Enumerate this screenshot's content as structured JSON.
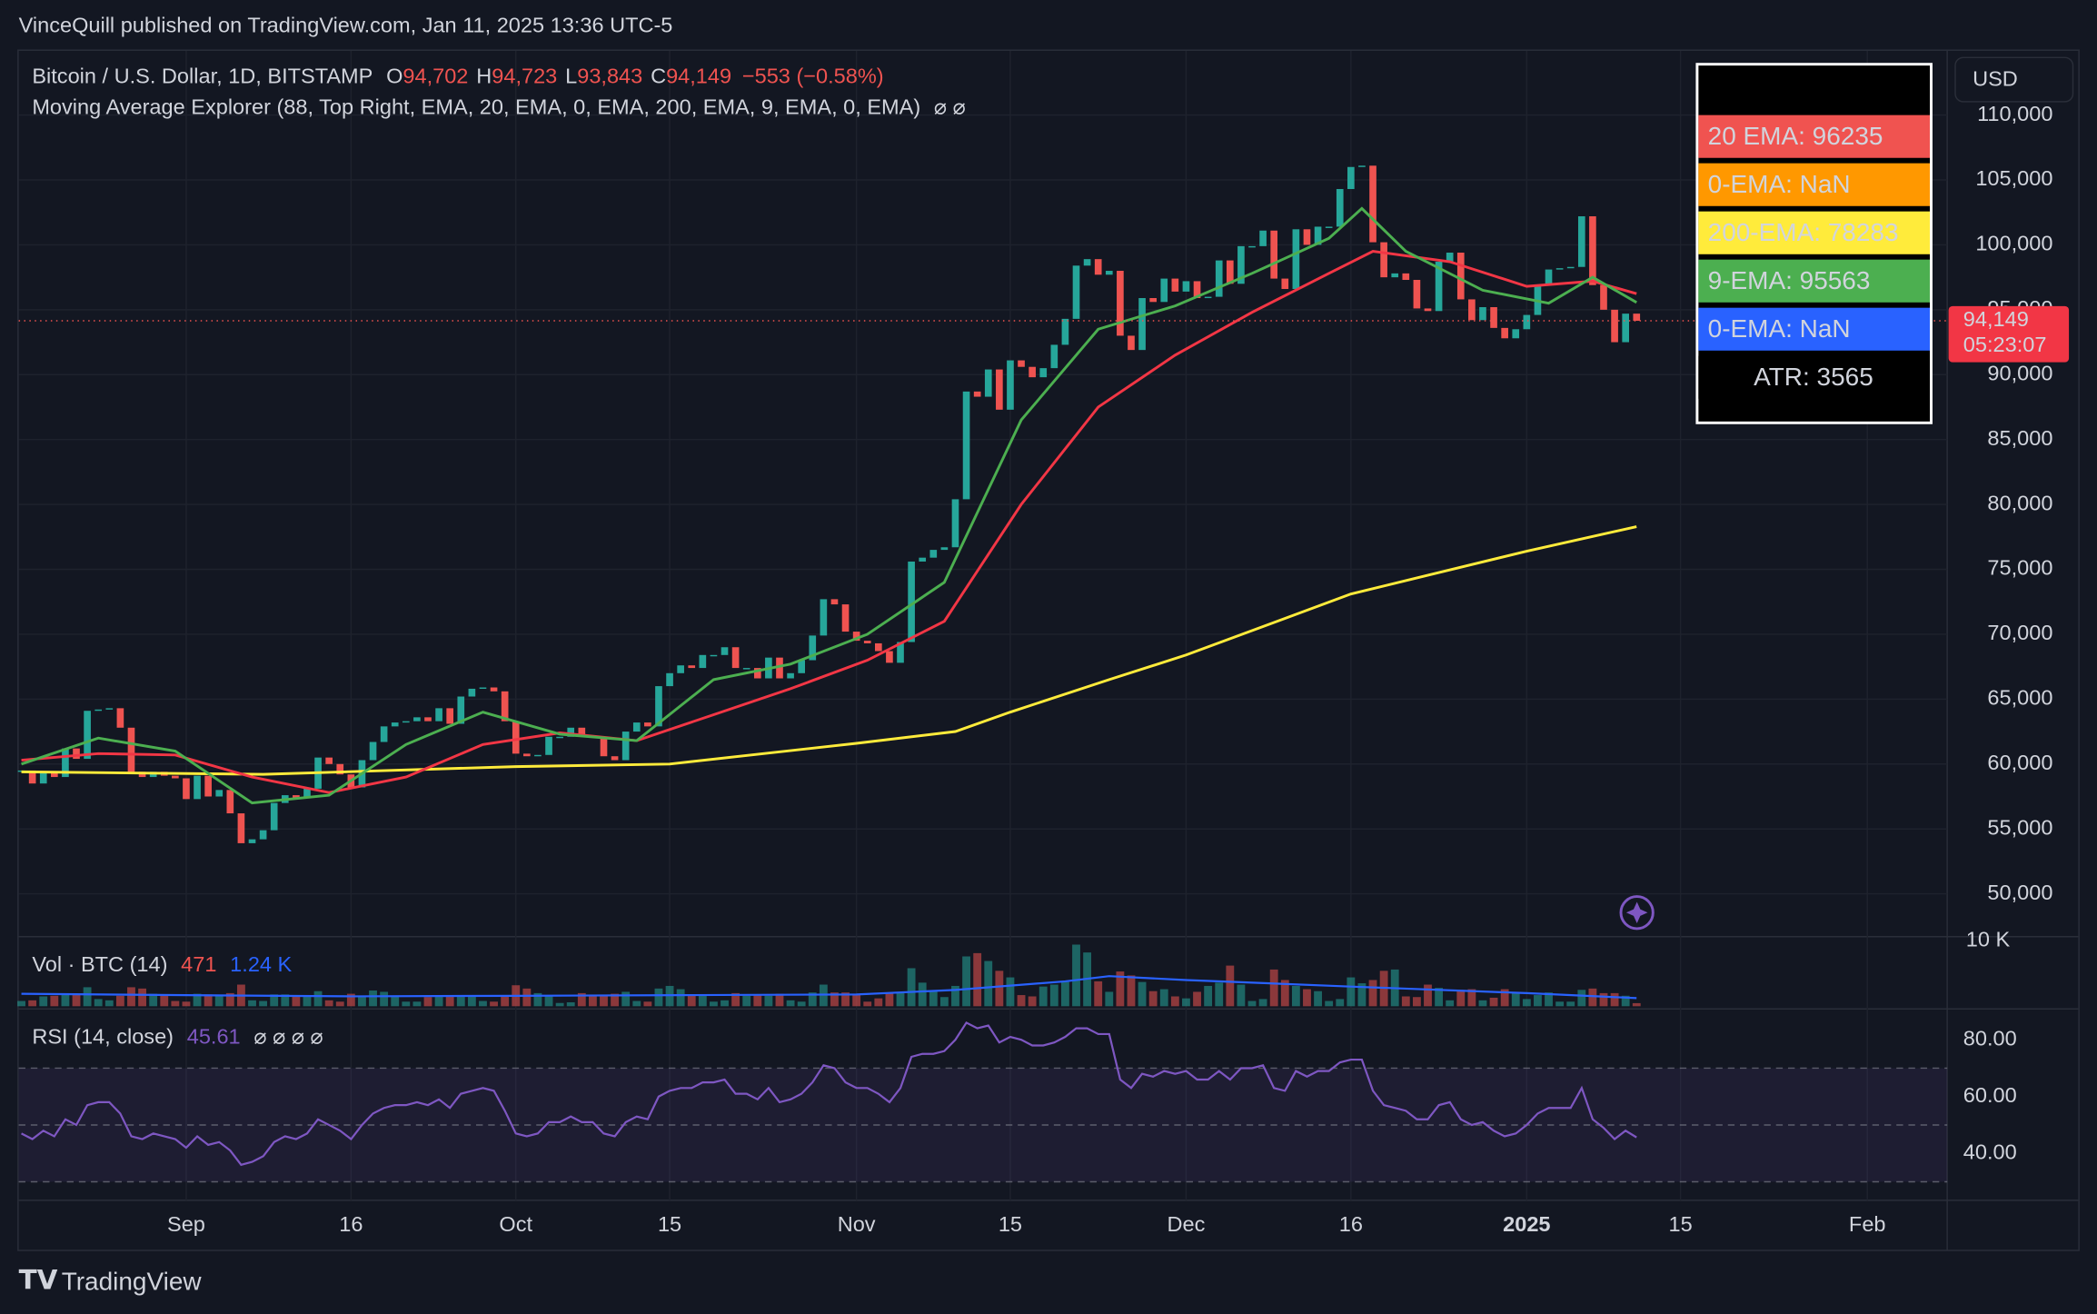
{
  "header": {
    "published": "VinceQuill published on TradingView.com, Jan 11, 2025 13:36 UTC-5",
    "symbol": "Bitcoin / U.S. Dollar, 1D, BITSTAMP",
    "ohlc": [
      {
        "key": "O",
        "value": "94,702"
      },
      {
        "key": "H",
        "value": "94,723"
      },
      {
        "key": "L",
        "value": "93,843"
      },
      {
        "key": "C",
        "value": "94,149"
      }
    ],
    "change": "−553 (−0.58%)",
    "indicator": "Moving Average Explorer (88, Top Right, EMA, 20, EMA, 0, EMA, 200, EMA, 9, EMA, 0, EMA)",
    "indicator_icons": "⌀ ⌀"
  },
  "currency_button": "USD",
  "ema_table": [
    {
      "text": "20 EMA: 96235",
      "color": "#f05350",
      "text_color": "#000000"
    },
    {
      "text": "0-EMA: NaN",
      "color": "#ff9800",
      "text_color": "#000000"
    },
    {
      "text": "200-EMA: 78283",
      "color": "#ffeb3b",
      "text_color": "#000000"
    },
    {
      "text": "9-EMA: 95563",
      "color": "#4caf50",
      "text_color": "#000000"
    },
    {
      "text": "0-EMA: NaN",
      "color": "#2962ff",
      "text_color": "#000000"
    },
    {
      "text": "ATR: 3565",
      "color": "#000000",
      "text_color": "#ffffff"
    }
  ],
  "footer": {
    "logo": "TradingView"
  },
  "chart_data": {
    "type": "candlestick",
    "x": [
      "2024-08-17",
      "2024-08-18",
      "2024-08-19",
      "2024-08-20",
      "2024-08-21",
      "2024-08-22",
      "2024-08-23",
      "2024-08-24",
      "2024-08-25",
      "2024-08-26",
      "2024-08-27",
      "2024-08-28",
      "2024-08-29",
      "2024-08-30",
      "2024-08-31",
      "2024-09-01",
      "2024-09-02",
      "2024-09-03",
      "2024-09-04",
      "2024-09-05",
      "2024-09-06",
      "2024-09-07",
      "2024-09-08",
      "2024-09-09",
      "2024-09-10",
      "2024-09-11",
      "2024-09-12",
      "2024-09-13",
      "2024-09-14",
      "2024-09-15",
      "2024-09-16",
      "2024-09-17",
      "2024-09-18",
      "2024-09-19",
      "2024-09-20",
      "2024-09-21",
      "2024-09-22",
      "2024-09-23",
      "2024-09-24",
      "2024-09-25",
      "2024-09-26",
      "2024-09-27",
      "2024-09-28",
      "2024-09-29",
      "2024-09-30",
      "2024-10-01",
      "2024-10-02",
      "2024-10-03",
      "2024-10-04",
      "2024-10-05",
      "2024-10-06",
      "2024-10-07",
      "2024-10-08",
      "2024-10-09",
      "2024-10-10",
      "2024-10-11",
      "2024-10-12",
      "2024-10-13",
      "2024-10-14",
      "2024-10-15",
      "2024-10-16",
      "2024-10-17",
      "2024-10-18",
      "2024-10-19",
      "2024-10-20",
      "2024-10-21",
      "2024-10-22",
      "2024-10-23",
      "2024-10-24",
      "2024-10-25",
      "2024-10-26",
      "2024-10-27",
      "2024-10-28",
      "2024-10-29",
      "2024-10-30",
      "2024-10-31",
      "2024-11-01",
      "2024-11-02",
      "2024-11-03",
      "2024-11-04",
      "2024-11-05",
      "2024-11-06",
      "2024-11-07",
      "2024-11-08",
      "2024-11-09",
      "2024-11-10",
      "2024-11-11",
      "2024-11-12",
      "2024-11-13",
      "2024-11-14",
      "2024-11-15",
      "2024-11-16",
      "2024-11-17",
      "2024-11-18",
      "2024-11-19",
      "2024-11-20",
      "2024-11-21",
      "2024-11-22",
      "2024-11-23",
      "2024-11-24",
      "2024-11-25",
      "2024-11-26",
      "2024-11-27",
      "2024-11-28",
      "2024-11-29",
      "2024-11-30",
      "2024-12-01",
      "2024-12-02",
      "2024-12-03",
      "2024-12-04",
      "2024-12-05",
      "2024-12-06",
      "2024-12-07",
      "2024-12-08",
      "2024-12-09",
      "2024-12-10",
      "2024-12-11",
      "2024-12-12",
      "2024-12-13",
      "2024-12-14",
      "2024-12-15",
      "2024-12-16",
      "2024-12-17",
      "2024-12-18",
      "2024-12-19",
      "2024-12-20",
      "2024-12-21",
      "2024-12-22",
      "2024-12-23",
      "2024-12-24",
      "2024-12-25",
      "2024-12-26",
      "2024-12-27",
      "2024-12-28",
      "2024-12-29",
      "2024-12-30",
      "2024-12-31",
      "2025-01-01",
      "2025-01-02",
      "2025-01-03",
      "2025-01-04",
      "2025-01-05",
      "2025-01-06",
      "2025-01-07",
      "2025-01-08",
      "2025-01-09",
      "2025-01-10",
      "2025-01-11"
    ],
    "close": [
      59500,
      58500,
      59400,
      59000,
      61200,
      60400,
      64100,
      64200,
      64300,
      62800,
      59400,
      59000,
      59400,
      59100,
      58900,
      57300,
      59100,
      57500,
      58000,
      56200,
      53900,
      54200,
      54900,
      57000,
      57600,
      57400,
      58100,
      60500,
      60000,
      59200,
      58200,
      60300,
      61700,
      62900,
      63200,
      63300,
      63600,
      63300,
      64300,
      63100,
      65200,
      65800,
      65900,
      65600,
      63300,
      60800,
      60600,
      60700,
      62100,
      62100,
      62800,
      62200,
      62100,
      60600,
      60300,
      62500,
      63200,
      62900,
      66000,
      67000,
      67600,
      67400,
      68400,
      68400,
      69000,
      67400,
      67400,
      66600,
      68200,
      66600,
      67000,
      68000,
      69900,
      72700,
      72300,
      70200,
      69500,
      69300,
      68700,
      67800,
      69400,
      75600,
      75900,
      76500,
      76700,
      80400,
      88700,
      88300,
      90400,
      87300,
      91100,
      90600,
      89800,
      90500,
      92300,
      94300,
      98400,
      98900,
      97700,
      98000,
      93000,
      91900,
      95900,
      95600,
      97400,
      96400,
      97200,
      95900,
      96000,
      98800,
      97000,
      99900,
      99900,
      101100,
      97400,
      96600,
      101200,
      100000,
      101400,
      101400,
      104300,
      106000,
      106100,
      100200,
      97500,
      97800,
      97300,
      95100,
      94900,
      98700,
      99400,
      95800,
      94200,
      95200,
      93600,
      92800,
      93500,
      94600,
      96900,
      98100,
      98200,
      98300,
      102200,
      96900,
      95000,
      92500,
      94700,
      94149
    ],
    "up_color": "#26a69a",
    "down_color": "#ef5350",
    "last_price_label": "94,149",
    "countdown": "05:23:07",
    "xlim": [
      "2024-08-17",
      "2025-02-09"
    ],
    "xticks": [
      {
        "value": "2024-09-01",
        "label": "Sep"
      },
      {
        "value": "2024-09-16",
        "label": "16"
      },
      {
        "value": "2024-10-01",
        "label": "Oct"
      },
      {
        "value": "2024-10-15",
        "label": "15"
      },
      {
        "value": "2024-11-01",
        "label": "Nov"
      },
      {
        "value": "2024-11-15",
        "label": "15"
      },
      {
        "value": "2024-12-01",
        "label": "Dec"
      },
      {
        "value": "2024-12-16",
        "label": "16"
      },
      {
        "value": "2025-01-01",
        "label": "2025"
      },
      {
        "value": "2025-01-15",
        "label": "15"
      },
      {
        "value": "2025-02-01",
        "label": "Feb"
      }
    ],
    "ylim": [
      46700,
      115050
    ],
    "yticks": [
      {
        "value": 50000,
        "label": "50,000"
      },
      {
        "value": 55000,
        "label": "55,000"
      },
      {
        "value": 60000,
        "label": "60,000"
      },
      {
        "value": 65000,
        "label": "65,000"
      },
      {
        "value": 70000,
        "label": "70,000"
      },
      {
        "value": 75000,
        "label": "75,000"
      },
      {
        "value": 80000,
        "label": "80,000"
      },
      {
        "value": 85000,
        "label": "85,000"
      },
      {
        "value": 90000,
        "label": "90,000"
      },
      {
        "value": 95000,
        "label": "95,000"
      },
      {
        "value": 100000,
        "label": "100,000"
      },
      {
        "value": 105000,
        "label": "105,000"
      },
      {
        "value": 110000,
        "label": "110,000"
      }
    ],
    "grid": true,
    "series": [
      {
        "color": "#ffeb3b",
        "x": [
          "2024-08-17",
          "2024-09-08",
          "2024-10-01",
          "2024-10-15",
          "2024-11-01",
          "2024-11-10",
          "2024-11-15",
          "2024-11-24",
          "2024-12-01",
          "2024-12-16",
          "2025-01-01",
          "2025-01-11"
        ],
        "values": [
          59400,
          59200,
          59800,
          60000,
          61600,
          62500,
          64000,
          66500,
          68400,
          73100,
          76400,
          78283
        ]
      },
      {
        "color": "#f23645",
        "x": [
          "2024-08-17",
          "2024-08-24",
          "2024-08-31",
          "2024-09-07",
          "2024-09-14",
          "2024-09-21",
          "2024-09-28",
          "2024-10-05",
          "2024-10-12",
          "2024-10-19",
          "2024-10-26",
          "2024-11-02",
          "2024-11-09",
          "2024-11-16",
          "2024-11-23",
          "2024-11-30",
          "2024-12-07",
          "2024-12-14",
          "2024-12-18",
          "2024-12-25",
          "2025-01-01",
          "2025-01-07",
          "2025-01-11"
        ],
        "values": [
          60300,
          60800,
          60700,
          59000,
          57800,
          59000,
          61500,
          62400,
          61800,
          63800,
          65800,
          68000,
          71000,
          80000,
          87500,
          91500,
          94800,
          97800,
          99500,
          98700,
          96800,
          97200,
          96235
        ]
      },
      {
        "color": "#4caf50",
        "x": [
          "2024-08-17",
          "2024-08-24",
          "2024-08-31",
          "2024-09-07",
          "2024-09-14",
          "2024-09-21",
          "2024-09-28",
          "2024-10-05",
          "2024-10-12",
          "2024-10-19",
          "2024-10-26",
          "2024-11-02",
          "2024-11-09",
          "2024-11-16",
          "2024-11-23",
          "2024-11-30",
          "2024-12-07",
          "2024-12-14",
          "2024-12-17",
          "2024-12-21",
          "2024-12-28",
          "2025-01-03",
          "2025-01-07",
          "2025-01-11"
        ],
        "values": [
          60000,
          62000,
          61000,
          57000,
          57600,
          61500,
          64000,
          62300,
          61800,
          66500,
          67700,
          70000,
          74000,
          86500,
          93500,
          95300,
          97800,
          100500,
          102800,
          99500,
          96500,
          95500,
          97500,
          95563
        ]
      }
    ],
    "volume": {
      "title": "Vol · BTC (14)",
      "values": [
        800,
        900,
        1500,
        1600,
        1800,
        1900,
        2900,
        1100,
        900,
        1600,
        2900,
        2700,
        1900,
        1600,
        800,
        700,
        1900,
        1800,
        1500,
        2000,
        3300,
        900,
        800,
        1800,
        1800,
        1600,
        1700,
        2300,
        900,
        700,
        1900,
        1600,
        2400,
        2200,
        1500,
        700,
        700,
        1400,
        1500,
        1500,
        1700,
        1500,
        800,
        700,
        1700,
        3200,
        2700,
        2000,
        1600,
        500,
        600,
        2000,
        1500,
        1700,
        1900,
        2200,
        800,
        700,
        2700,
        3100,
        2600,
        1800,
        1800,
        700,
        900,
        2000,
        1600,
        1700,
        1600,
        1900,
        900,
        700,
        2100,
        3300,
        2100,
        2100,
        1900,
        700,
        1200,
        2000,
        2200,
        5800,
        3600,
        2300,
        1400,
        3100,
        7600,
        8100,
        6900,
        5400,
        4400,
        1700,
        1500,
        3000,
        3300,
        3700,
        9400,
        8200,
        3800,
        2200,
        5300,
        4700,
        3700,
        2300,
        2600,
        1500,
        1200,
        2200,
        3100,
        3600,
        6200,
        3300,
        800,
        1100,
        5600,
        4000,
        3100,
        2600,
        2300,
        800,
        1100,
        4400,
        3500,
        4000,
        5400,
        5600,
        1500,
        1400,
        3300,
        2800,
        900,
        2500,
        2600,
        900,
        1300,
        2600,
        2000,
        1100,
        1700,
        2100,
        700,
        700,
        2500,
        2700,
        2000,
        2000,
        1600,
        471
      ],
      "ma": {
        "color": "#2962ff",
        "x": [
          "2024-08-17",
          "2024-09-01",
          "2024-09-16",
          "2024-10-01",
          "2024-10-16",
          "2024-11-01",
          "2024-11-10",
          "2024-11-20",
          "2024-11-24",
          "2024-12-01",
          "2024-12-16",
          "2025-01-01",
          "2025-01-11"
        ],
        "values": [
          1900,
          1700,
          1500,
          1600,
          1700,
          1800,
          2500,
          3800,
          4600,
          4000,
          3000,
          2000,
          1240
        ]
      },
      "ma_label": "1.24 K",
      "ylim": [
        0,
        10000
      ],
      "yticks": [
        {
          "value": 10000,
          "label": "10 K"
        }
      ]
    },
    "rsi": {
      "title": "RSI (14, close)",
      "icons": "⌀ ⌀ ⌀ ⌀",
      "color": "#7e57c2",
      "values": [
        47,
        45,
        48,
        46,
        52,
        50,
        57,
        58,
        58,
        54,
        46,
        45,
        47,
        46,
        45,
        42,
        46,
        43,
        44,
        41,
        36,
        37,
        39,
        44,
        46,
        45,
        47,
        52,
        50,
        48,
        45,
        50,
        54,
        56,
        57,
        57,
        58,
        57,
        59,
        56,
        61,
        62,
        63,
        62,
        55,
        47,
        46,
        47,
        51,
        51,
        53,
        51,
        51,
        47,
        46,
        51,
        53,
        52,
        60,
        62,
        63,
        63,
        65,
        65,
        66,
        61,
        61,
        59,
        63,
        58,
        59,
        61,
        65,
        71,
        70,
        65,
        63,
        63,
        61,
        58,
        63,
        74,
        75,
        75,
        76,
        80,
        86,
        84,
        85,
        79,
        81,
        80,
        78,
        78,
        79,
        81,
        84,
        84,
        82,
        82,
        66,
        63,
        68,
        67,
        69,
        68,
        69,
        66,
        66,
        69,
        66,
        70,
        70,
        71,
        63,
        62,
        69,
        67,
        69,
        69,
        72,
        73,
        73,
        62,
        57,
        56,
        55,
        52,
        52,
        57,
        58,
        52,
        50,
        51,
        48,
        46,
        47,
        50,
        54,
        56,
        56,
        56,
        63,
        52,
        49,
        45,
        48,
        45.61
      ],
      "levels": [
        30,
        50,
        70
      ],
      "ylim": [
        23.5,
        89.9
      ],
      "yticks": [
        {
          "value": 40,
          "label": "40.00"
        },
        {
          "value": 60,
          "label": "60.00"
        },
        {
          "value": 80,
          "label": "80.00"
        }
      ]
    }
  }
}
